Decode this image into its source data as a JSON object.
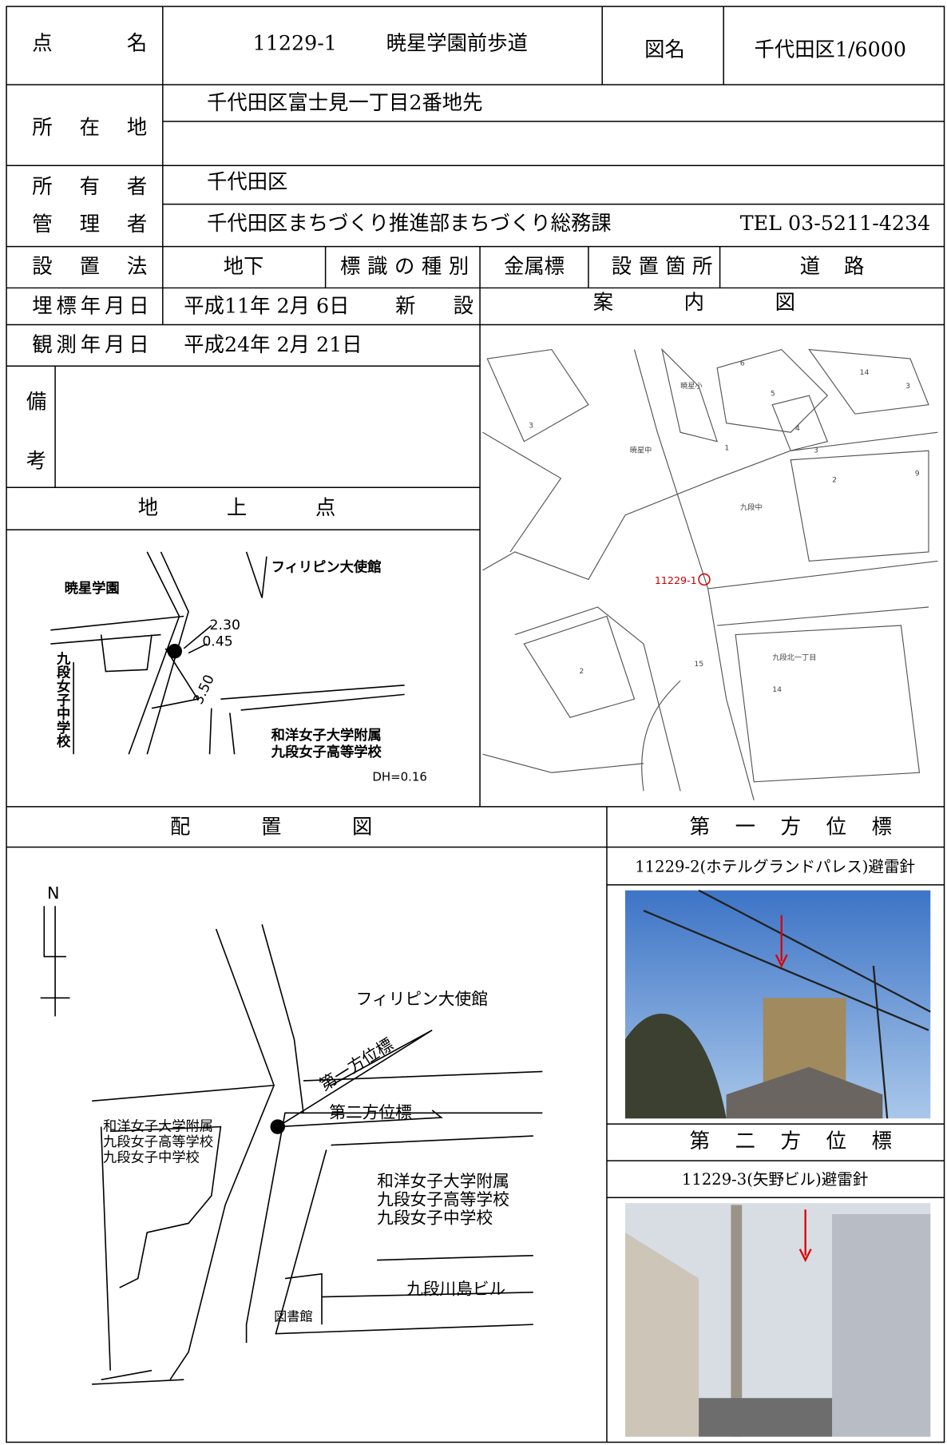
{
  "header": {
    "point_label": "点名",
    "point_number": "11229-1",
    "point_name": "暁星学園前歩道",
    "map_label": "図名",
    "map_name": "千代田区1/6000"
  },
  "location": {
    "label": "所在地",
    "value": "千代田区富士見一丁目2番地先"
  },
  "owner": {
    "label": "所有者",
    "value": "千代田区"
  },
  "manager": {
    "label": "管理者",
    "value": "千代田区まちづくり推進部まちづくり総務課",
    "tel": "TEL 03-5211-4234"
  },
  "install": {
    "method_label": "設置法",
    "method": "地下",
    "type_label": "標識の種別",
    "type": "金属標",
    "place_label": "設置箇所",
    "place": "道路"
  },
  "buried": {
    "label": "埋標年月日",
    "date": "平成11年 2月 6日",
    "status": "新設"
  },
  "observed": {
    "label": "観測年月日",
    "date": "平成24年 2月 21日"
  },
  "guide_map": {
    "label": "案内図",
    "point": "11229-1",
    "names": [
      "暁星小",
      "暁星中",
      "九段中",
      "九段北一丁目"
    ],
    "numbers": [
      "6",
      "5",
      "14",
      "3",
      "4",
      "3",
      "2",
      "9",
      "3",
      "1",
      "15",
      "2",
      "14"
    ]
  },
  "remarks": {
    "label": "備考"
  },
  "ground_point": {
    "label": "地上点",
    "school1": "暁星学園",
    "embassy": "フィリピン大使館",
    "dist1": "2.30",
    "dist2": "0.45",
    "dist3": "3.50",
    "school2": "九段女子中学校",
    "school3_line1": "和洋女子大学附属",
    "school3_line2": "九段女子高等学校",
    "dh": "DH=0.16"
  },
  "layout_map": {
    "label": "配置図",
    "north": "N",
    "embassy": "フィリピン大使館",
    "first": "第一方位標",
    "second": "第二方位標",
    "left_block": [
      "和洋女子大学附属",
      "九段女子高等学校",
      "九段女子中学校"
    ],
    "right_block": [
      "和洋女子大学附属",
      "九段女子高等学校",
      "九段女子中学校"
    ],
    "building": "九段川島ビル",
    "library": "図書館"
  },
  "azimuth1": {
    "label": "第一方位標",
    "caption": "11229-2(ホテルグランドパレス)避雷針"
  },
  "azimuth2": {
    "label": "第二方位標",
    "caption": "11229-3(矢野ビル)避雷針"
  }
}
